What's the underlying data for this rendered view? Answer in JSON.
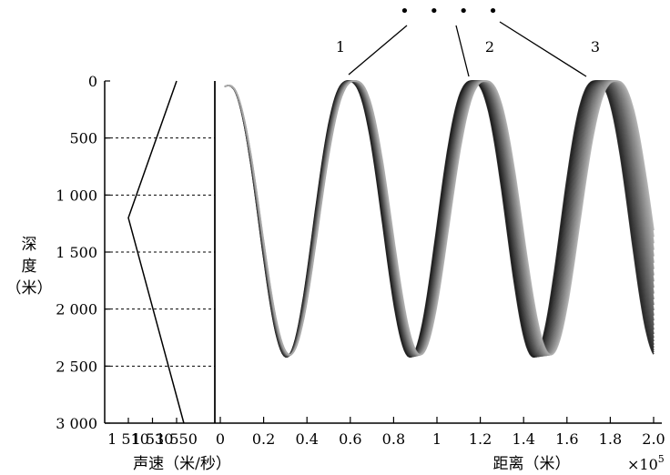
{
  "chart_data": [
    {
      "type": "line",
      "title": "",
      "xlabel": "声速（米/秒）",
      "ylabel": "深度（米）",
      "ylabel_chars": [
        "深",
        "度",
        "（米）"
      ],
      "xlim": [
        1510,
        1560
      ],
      "ylim": [
        3000,
        0
      ],
      "x_tick_values": [
        1510,
        1530,
        1550
      ],
      "x_tick_labels": [
        "1 510",
        "1 530",
        "1 550"
      ],
      "y_tick_values": [
        0,
        500,
        1000,
        1500,
        2000,
        2500,
        3000
      ],
      "y_tick_labels": [
        "0",
        "500",
        "1 000",
        "1 500",
        "2 000",
        "2 500",
        "3 000"
      ],
      "grid": {
        "horizontal_dashed": true
      },
      "series": [
        {
          "points": [
            [
              1550,
              0
            ],
            [
              1510,
              1200
            ],
            [
              1556,
              3000
            ]
          ]
        }
      ]
    },
    {
      "type": "line",
      "title": "",
      "xlabel": "距离（米）",
      "x_multiplier_label": "×10",
      "x_multiplier_exponent": "5",
      "xlim": [
        0,
        2.0
      ],
      "ylim": [
        3000,
        0
      ],
      "x_tick_values": [
        0,
        0.2,
        0.4,
        0.6,
        0.8,
        1.0,
        1.2,
        1.4,
        1.6,
        1.8,
        2.0
      ],
      "x_tick_labels": [
        "0",
        "0.2",
        "0.4",
        "0.6",
        "0.8",
        "1",
        "1.2",
        "1.4",
        "1.6",
        "1.8",
        "2.0"
      ],
      "annotations": {
        "ray_labels": [
          "1",
          "2",
          "3"
        ],
        "ellipsis": "• • • •"
      },
      "ray_bundle": {
        "start_x": 0.02,
        "start_depth": 50,
        "surface_depth": 0,
        "bottom_depth": 2420,
        "first_trough_x": 0.3,
        "first_crest_x": 0.6,
        "second_crest_x": 1.14,
        "third_crest_x": 1.7,
        "end_x": 2.0,
        "spread_fraction": 0.055,
        "ray_count": 26
      }
    }
  ]
}
